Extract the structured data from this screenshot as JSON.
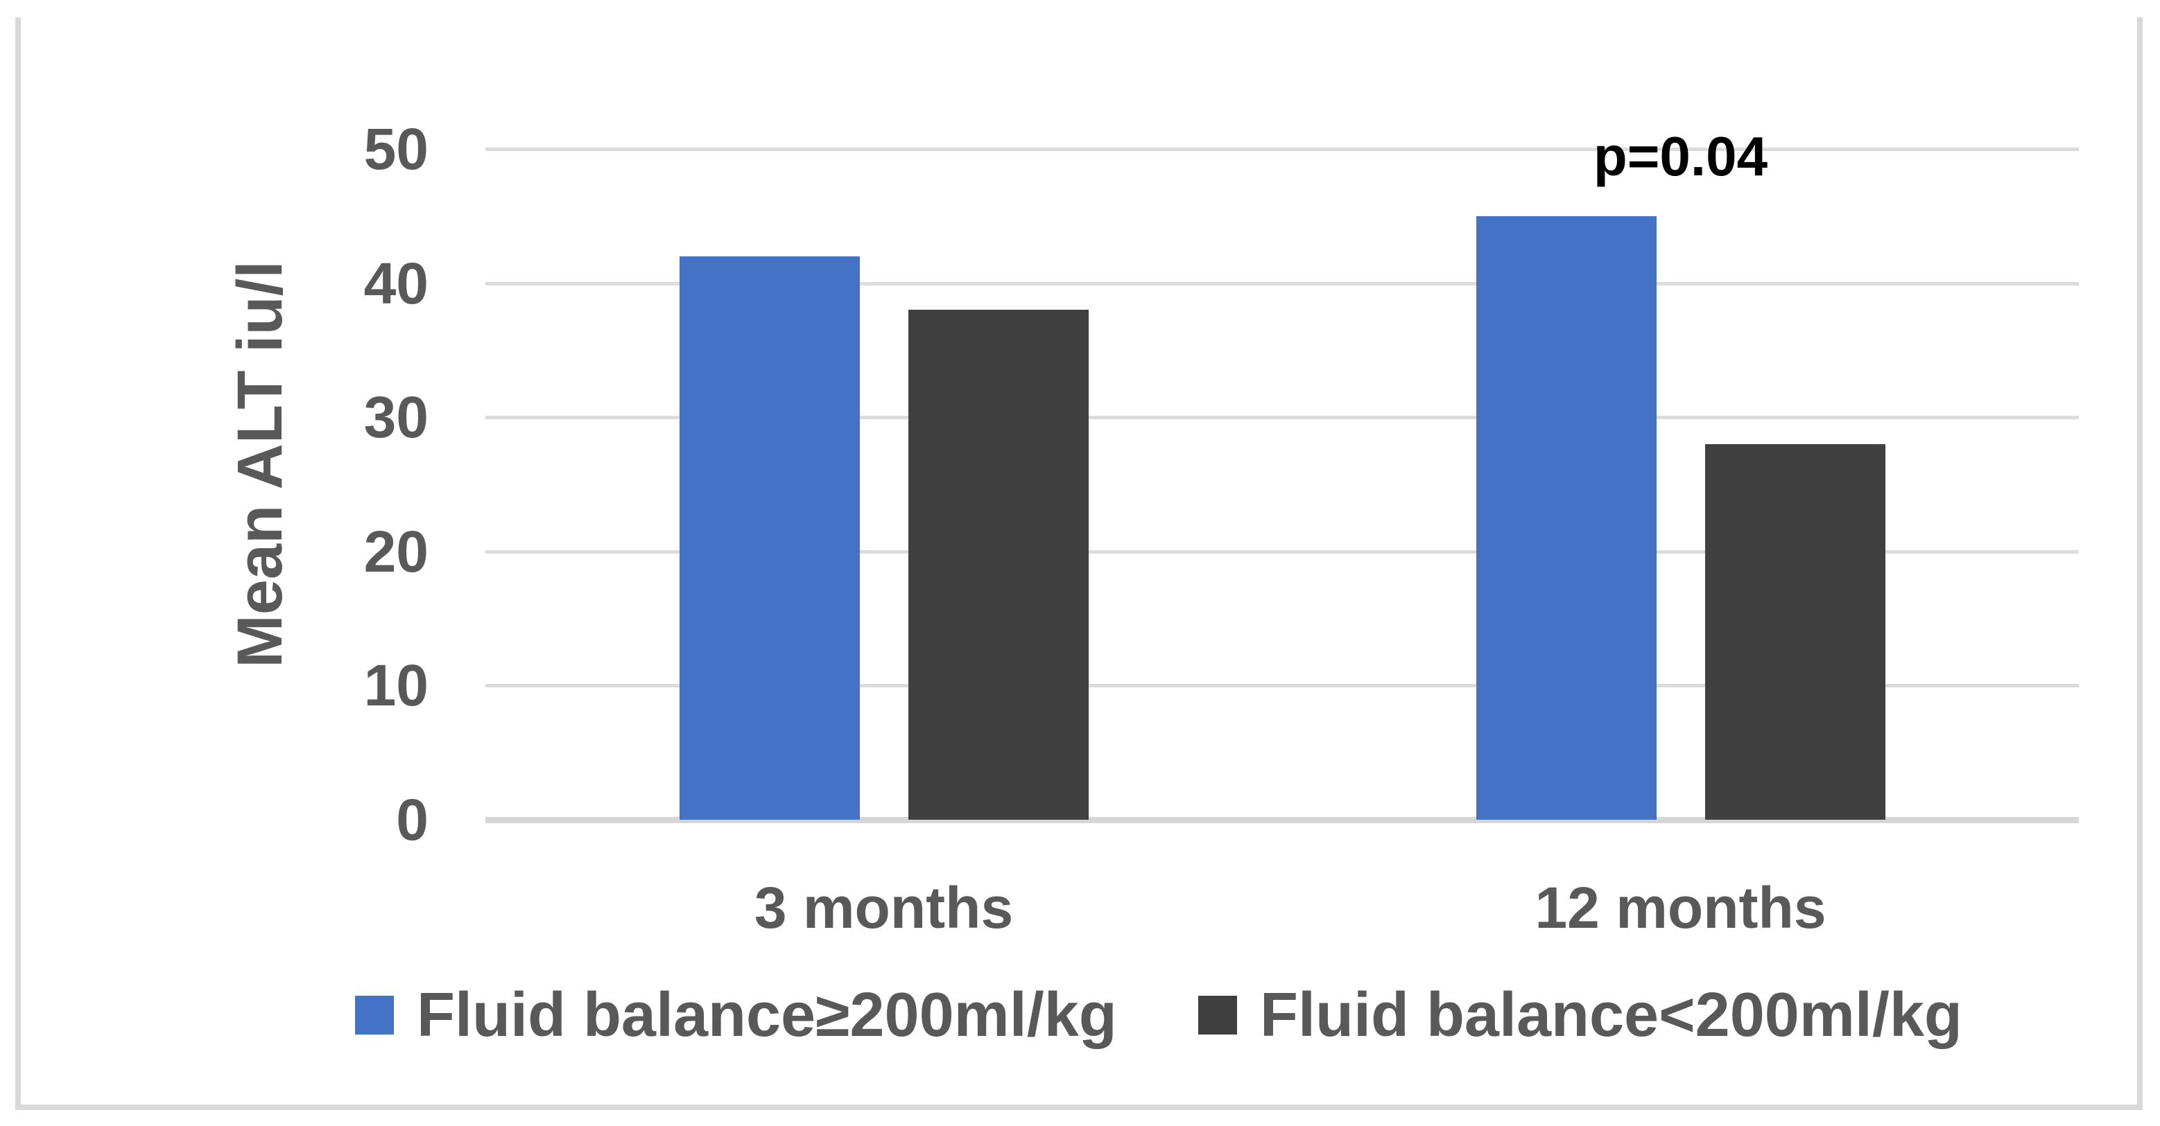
{
  "chart_data": {
    "type": "bar",
    "title": "",
    "categories": [
      "3 months",
      "12 months"
    ],
    "series": [
      {
        "name": "Fluid balance≥200ml/kg",
        "color": "#4472C4",
        "values": [
          42,
          45
        ]
      },
      {
        "name": "Fluid balance<200ml/kg",
        "color": "#404040",
        "values": [
          38,
          28
        ]
      }
    ],
    "xlabel": "",
    "ylabel": "Mean ALT iu/l",
    "ylim": [
      0,
      50
    ],
    "yticks": [
      0,
      10,
      20,
      30,
      40,
      50
    ],
    "grid": true,
    "legend_position": "bottom",
    "annotation": {
      "text": "p=0.04",
      "category": "12 months",
      "above_series": "Fluid balance≥200ml/kg"
    },
    "text_color": "#595959",
    "annotation_color": "#000000",
    "gridline_color": "#d9d9d9"
  }
}
